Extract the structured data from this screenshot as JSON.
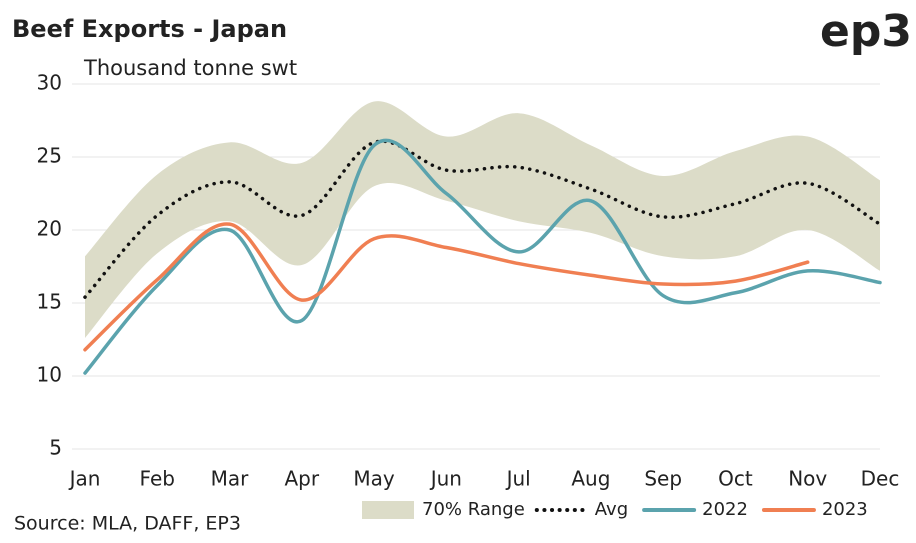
{
  "chart_data": {
    "type": "line",
    "title": "Beef Exports - Japan",
    "subtitle": "Thousand tonne swt",
    "logo": "ep3",
    "source": "Source: MLA, DAFF, EP3",
    "categories": [
      "Jan",
      "Feb",
      "Mar",
      "Apr",
      "May",
      "Jun",
      "Jul",
      "Aug",
      "Sep",
      "Oct",
      "Nov",
      "Dec"
    ],
    "ylim": [
      5,
      30
    ],
    "yticks": [
      5,
      10,
      15,
      20,
      25,
      30
    ],
    "grid": true,
    "range": {
      "name": "70% Range",
      "color": "#dcdcc8",
      "upper": [
        18.2,
        23.8,
        26,
        24.6,
        28.8,
        26.4,
        28,
        25.8,
        23.7,
        25.4,
        26.4,
        23.4
      ],
      "lower": [
        12.6,
        18.4,
        20.6,
        17.6,
        23,
        22,
        20.6,
        19.8,
        18.2,
        18.2,
        20,
        17.2
      ]
    },
    "series": [
      {
        "name": "Avg",
        "color": "#111111",
        "style": "dotted",
        "values": [
          15.4,
          21,
          23.3,
          21,
          26,
          24.1,
          24.3,
          22.8,
          20.9,
          21.8,
          23.2,
          20.4
        ]
      },
      {
        "name": "2022",
        "color": "#5ba3ad",
        "style": "solid",
        "values": [
          10.2,
          16.2,
          20,
          13.8,
          25.8,
          22.5,
          18.5,
          22,
          15.5,
          15.7,
          17.2,
          16.4
        ]
      },
      {
        "name": "2023",
        "color": "#f07f52",
        "style": "solid",
        "values": [
          11.8,
          16.6,
          20.4,
          15.2,
          19.4,
          18.8,
          17.7,
          16.9,
          16.3,
          16.5,
          17.8,
          null
        ]
      }
    ]
  }
}
